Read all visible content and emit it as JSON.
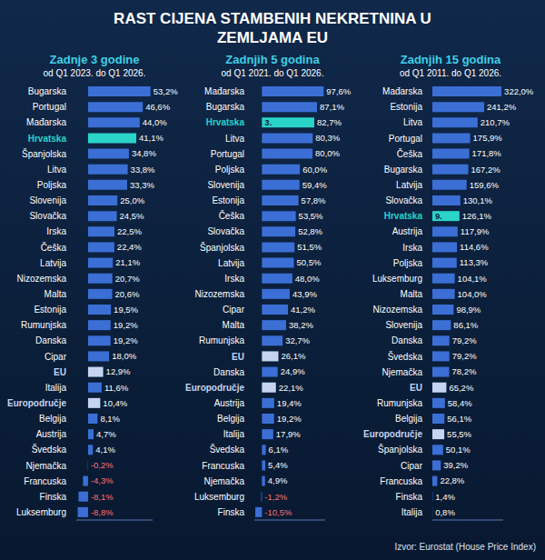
{
  "title": "RAST CIJENA STAMBENIH NEKRETNINA U ZEMLJAMA EU",
  "source": "Izvor: Eurostat (House Price Index)",
  "chart_data": [
    {
      "type": "bar",
      "orientation": "horizontal",
      "title": "Zadnje 3 godine",
      "subtitle": "od Q1 2023. do Q1 2026.",
      "data_labels": true,
      "tick_labels": "y",
      "xlim": [
        -10,
        55
      ],
      "categories": [
        "Bugarska",
        "Portugal",
        "Mađarska",
        "Hrvatska",
        "Španjolska",
        "Litva",
        "Poljska",
        "Slovenija",
        "Slovačka",
        "Irska",
        "Češka",
        "Latvija",
        "Nizozemska",
        "Malta",
        "Estonija",
        "Rumunjska",
        "Danska",
        "Cipar",
        "EU",
        "Italija",
        "Europodručje",
        "Belgija",
        "Austrija",
        "Švedska",
        "Njemačka",
        "Francuska",
        "Finska",
        "Luksemburg"
      ],
      "values": [
        53.2,
        46.6,
        44.0,
        41.1,
        34.8,
        33.8,
        33.3,
        25.0,
        24.5,
        22.5,
        22.4,
        21.1,
        20.7,
        20.6,
        19.5,
        19.2,
        19.2,
        18.0,
        12.9,
        11.6,
        10.4,
        8.1,
        4.7,
        4.1,
        -0.2,
        -4.3,
        -8.1,
        -8.8
      ],
      "value_labels": [
        "53,2%",
        "46,6%",
        "44,0%",
        "41,1%",
        "34,8%",
        "33,8%",
        "33,3%",
        "25,0%",
        "24,5%",
        "22,5%",
        "22,4%",
        "21,1%",
        "20,7%",
        "20,6%",
        "19,5%",
        "19,2%",
        "19,2%",
        "18,0%",
        "12,9%",
        "11,6%",
        "10,4%",
        "8,1%",
        "4,7%",
        "4,1%",
        "-0,2%",
        "-4,3%",
        "-8,1%",
        "-8,8%"
      ],
      "color": "#3b6fd6",
      "colors": [
        "#3b6fd6",
        "#3b6fd6",
        "#3b6fd6",
        "#2ad4c9",
        "#3b6fd6",
        "#3b6fd6",
        "#3b6fd6",
        "#3b6fd6",
        "#3b6fd6",
        "#3b6fd6",
        "#3b6fd6",
        "#3b6fd6",
        "#3b6fd6",
        "#3b6fd6",
        "#3b6fd6",
        "#3b6fd6",
        "#3b6fd6",
        "#3b6fd6",
        "#c5d5f0",
        "#3b6fd6",
        "#c5d5f0",
        "#3b6fd6",
        "#3b6fd6",
        "#3b6fd6",
        "#3b6fd6",
        "#3b6fd6",
        "#3b6fd6",
        "#3b6fd6"
      ],
      "annotations": []
    },
    {
      "type": "bar",
      "orientation": "horizontal",
      "title": "Zadnjih 5 godina",
      "subtitle": "od Q1 2021. do Q1 2026.",
      "data_labels": true,
      "tick_labels": "y",
      "xlim": [
        -12,
        100
      ],
      "categories": [
        "Mađarska",
        "Bugarska",
        "Hrvatska",
        "Litva",
        "Portugal",
        "Poljska",
        "Slovenija",
        "Estonija",
        "Češka",
        "Slovačka",
        "Španjolska",
        "Latvija",
        "Irska",
        "Nizozemska",
        "Cipar",
        "Malta",
        "Rumunjska",
        "EU",
        "Danska",
        "Europodručje",
        "Austrija",
        "Belgija",
        "Italija",
        "Švedska",
        "Francuska",
        "Njemačka",
        "Luksemburg",
        "Finska"
      ],
      "values": [
        97.6,
        87.1,
        82.7,
        80.3,
        80.0,
        60.0,
        59.4,
        57.8,
        53.5,
        52.8,
        51.5,
        50.5,
        48.0,
        43.9,
        41.2,
        38.2,
        32.7,
        26.1,
        24.9,
        22.1,
        19.4,
        19.2,
        17.9,
        6.1,
        5.4,
        4.9,
        -1.2,
        -10.5
      ],
      "value_labels": [
        "97,6%",
        "87,1%",
        "82,7%",
        "80,3%",
        "80,0%",
        "60,0%",
        "59,4%",
        "57,8%",
        "53,5%",
        "52,8%",
        "51,5%",
        "50,5%",
        "48,0%",
        "43,9%",
        "41,2%",
        "38,2%",
        "32,7%",
        "26,1%",
        "24,9%",
        "22,1%",
        "19,4%",
        "19,2%",
        "17,9%",
        "6,1%",
        "5,4%",
        "4,9%",
        "-1,2%",
        "-10,5%"
      ],
      "color": "#3b6fd6",
      "colors": [
        "#3b6fd6",
        "#3b6fd6",
        "#2ad4c9",
        "#3b6fd6",
        "#3b6fd6",
        "#3b6fd6",
        "#3b6fd6",
        "#3b6fd6",
        "#3b6fd6",
        "#3b6fd6",
        "#3b6fd6",
        "#3b6fd6",
        "#3b6fd6",
        "#3b6fd6",
        "#3b6fd6",
        "#3b6fd6",
        "#3b6fd6",
        "#c5d5f0",
        "#3b6fd6",
        "#c5d5f0",
        "#3b6fd6",
        "#3b6fd6",
        "#3b6fd6",
        "#3b6fd6",
        "#3b6fd6",
        "#3b6fd6",
        "#3b6fd6",
        "#3b6fd6"
      ],
      "annotations": [
        {
          "category": "Hrvatska",
          "text": "3."
        }
      ]
    },
    {
      "type": "bar",
      "orientation": "horizontal",
      "title": "Zadnjih 15 godina",
      "subtitle": "od Q1 2011. do Q1 2026.",
      "data_labels": true,
      "tick_labels": "y",
      "xlim": [
        0,
        330
      ],
      "categories": [
        "Mađarska",
        "Estonija",
        "Litva",
        "Portugal",
        "Češka",
        "Bugarska",
        "Latvija",
        "Slovačka",
        "Hrvatska",
        "Austrija",
        "Irska",
        "Poljska",
        "Luksemburg",
        "Malta",
        "Nizozemska",
        "Slovenija",
        "Danska",
        "Švedska",
        "Njemačka",
        "EU",
        "Rumunjska",
        "Belgija",
        "Europodručje",
        "Španjolska",
        "Cipar",
        "Francuska",
        "Finska",
        "Italija"
      ],
      "values": [
        322.0,
        241.2,
        210.7,
        175.9,
        171.8,
        167.2,
        159.6,
        130.1,
        126.1,
        117.9,
        114.6,
        113.3,
        104.1,
        104.0,
        98.9,
        86.1,
        79.2,
        79.2,
        78.2,
        65.2,
        58.4,
        56.1,
        55.5,
        50.1,
        39.2,
        22.8,
        1.4,
        0.8
      ],
      "value_labels": [
        "322,0%",
        "241,2%",
        "210,7%",
        "175,9%",
        "171,8%",
        "167,2%",
        "159,6%",
        "130,1%",
        "126,1%",
        "117,9%",
        "114,6%",
        "113,3%",
        "104,1%",
        "104,0%",
        "98,9%",
        "86,1%",
        "79,2%",
        "79,2%",
        "78,2%",
        "65,2%",
        "58,4%",
        "56,1%",
        "55,5%",
        "50,1%",
        "39,2%",
        "22,8%",
        "1,4%",
        "0,8%"
      ],
      "color": "#3b6fd6",
      "colors": [
        "#3b6fd6",
        "#3b6fd6",
        "#3b6fd6",
        "#3b6fd6",
        "#3b6fd6",
        "#3b6fd6",
        "#3b6fd6",
        "#3b6fd6",
        "#2ad4c9",
        "#3b6fd6",
        "#3b6fd6",
        "#3b6fd6",
        "#3b6fd6",
        "#3b6fd6",
        "#3b6fd6",
        "#3b6fd6",
        "#3b6fd6",
        "#3b6fd6",
        "#3b6fd6",
        "#c5d5f0",
        "#3b6fd6",
        "#3b6fd6",
        "#c5d5f0",
        "#3b6fd6",
        "#3b6fd6",
        "#3b6fd6",
        "#3b6fd6",
        "#3b6fd6"
      ],
      "annotations": [
        {
          "category": "Hrvatska",
          "text": "9."
        }
      ]
    }
  ]
}
